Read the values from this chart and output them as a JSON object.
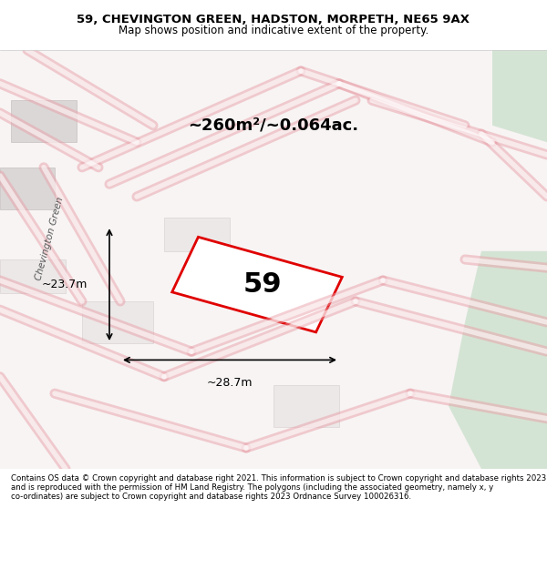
{
  "title_line1": "59, CHEVINGTON GREEN, HADSTON, MORPETH, NE65 9AX",
  "title_line2": "Map shows position and indicative extent of the property.",
  "area_text": "~260m²/~0.064ac.",
  "plot_number": "59",
  "dim_width": "~28.7m",
  "dim_height": "~23.7m",
  "street_label": "Chevington Green",
  "footer_text": "Contains OS data © Crown copyright and database right 2021. This information is subject to Crown copyright and database rights 2023 and is reproduced with the permission of HM Land Registry. The polygons (including the associated geometry, namely x, y co-ordinates) are subject to Crown copyright and database rights 2023 Ordnance Survey 100026316.",
  "bg_color": "#f5f0f0",
  "map_bg": "#ffffff",
  "road_color": "#ffffff",
  "road_stroke": "#e8b4b8",
  "plot_fill": "#ffffff",
  "plot_stroke": "#e00000",
  "green_patch": "#d4e8d4",
  "title_bg": "#ffffff",
  "footer_bg": "#ffffff"
}
